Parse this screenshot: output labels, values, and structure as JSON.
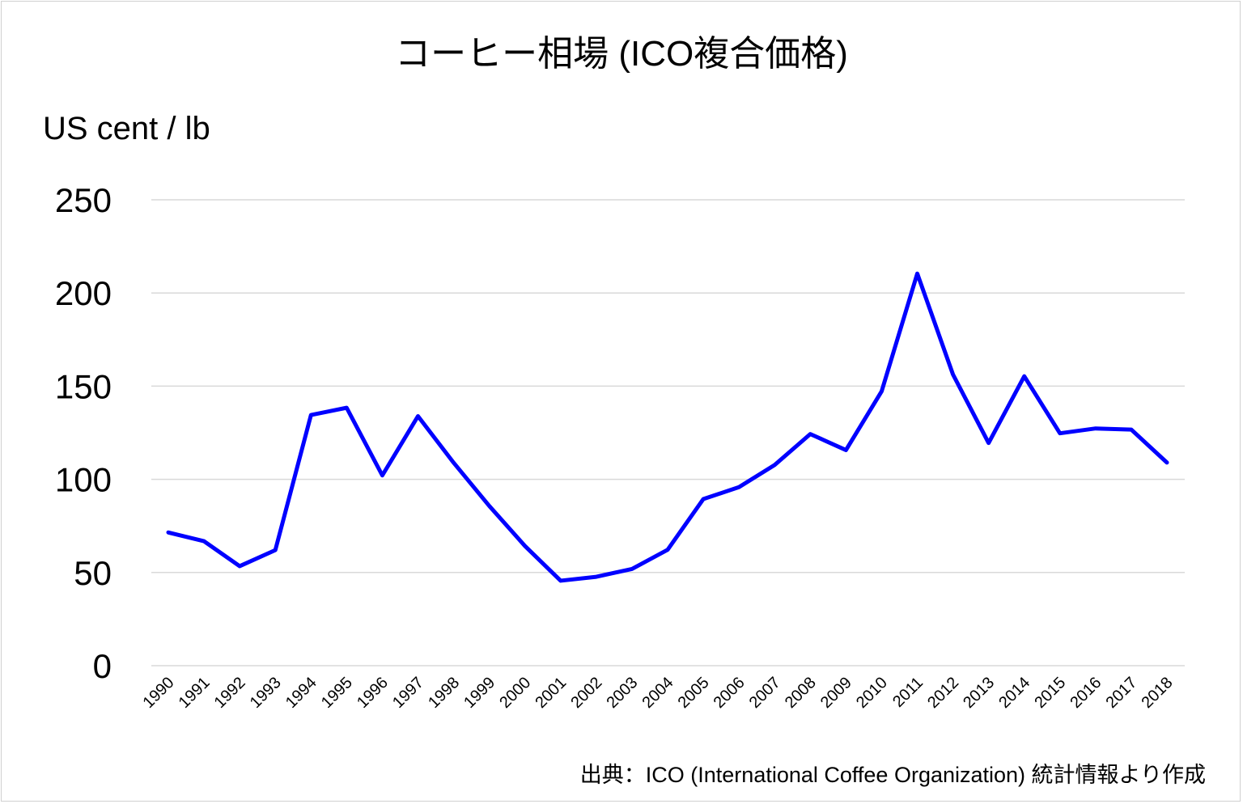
{
  "chart_data": {
    "type": "line",
    "title": "コーヒー相場 (ICO複合価格)",
    "xlabel": "",
    "ylabel": "US cent / lb",
    "ylim": [
      0,
      250
    ],
    "yticks": [
      "0",
      "50",
      "100",
      "150",
      "200",
      "250"
    ],
    "grid": true,
    "legend": "none",
    "categories": [
      "1990",
      "1991",
      "1992",
      "1993",
      "1994",
      "1995",
      "1996",
      "1997",
      "1998",
      "1999",
      "2000",
      "2001",
      "2002",
      "2003",
      "2004",
      "2005",
      "2006",
      "2007",
      "2008",
      "2009",
      "2010",
      "2011",
      "2012",
      "2013",
      "2014",
      "2015",
      "2016",
      "2017",
      "2018"
    ],
    "series": [
      {
        "name": "ICO複合価格",
        "color": "#0000ff",
        "values": [
          71.5,
          66.8,
          53.4,
          62.0,
          134.5,
          138.4,
          102.1,
          133.9,
          108.9,
          85.7,
          64.2,
          45.6,
          47.7,
          51.9,
          62.2,
          89.4,
          95.8,
          107.7,
          124.3,
          115.7,
          147.2,
          210.4,
          156.3,
          119.5,
          155.3,
          124.7,
          127.3,
          126.7,
          109.0
        ]
      }
    ],
    "source": "出典：ICO (International Coffee Organization) 統計情報より作成"
  }
}
